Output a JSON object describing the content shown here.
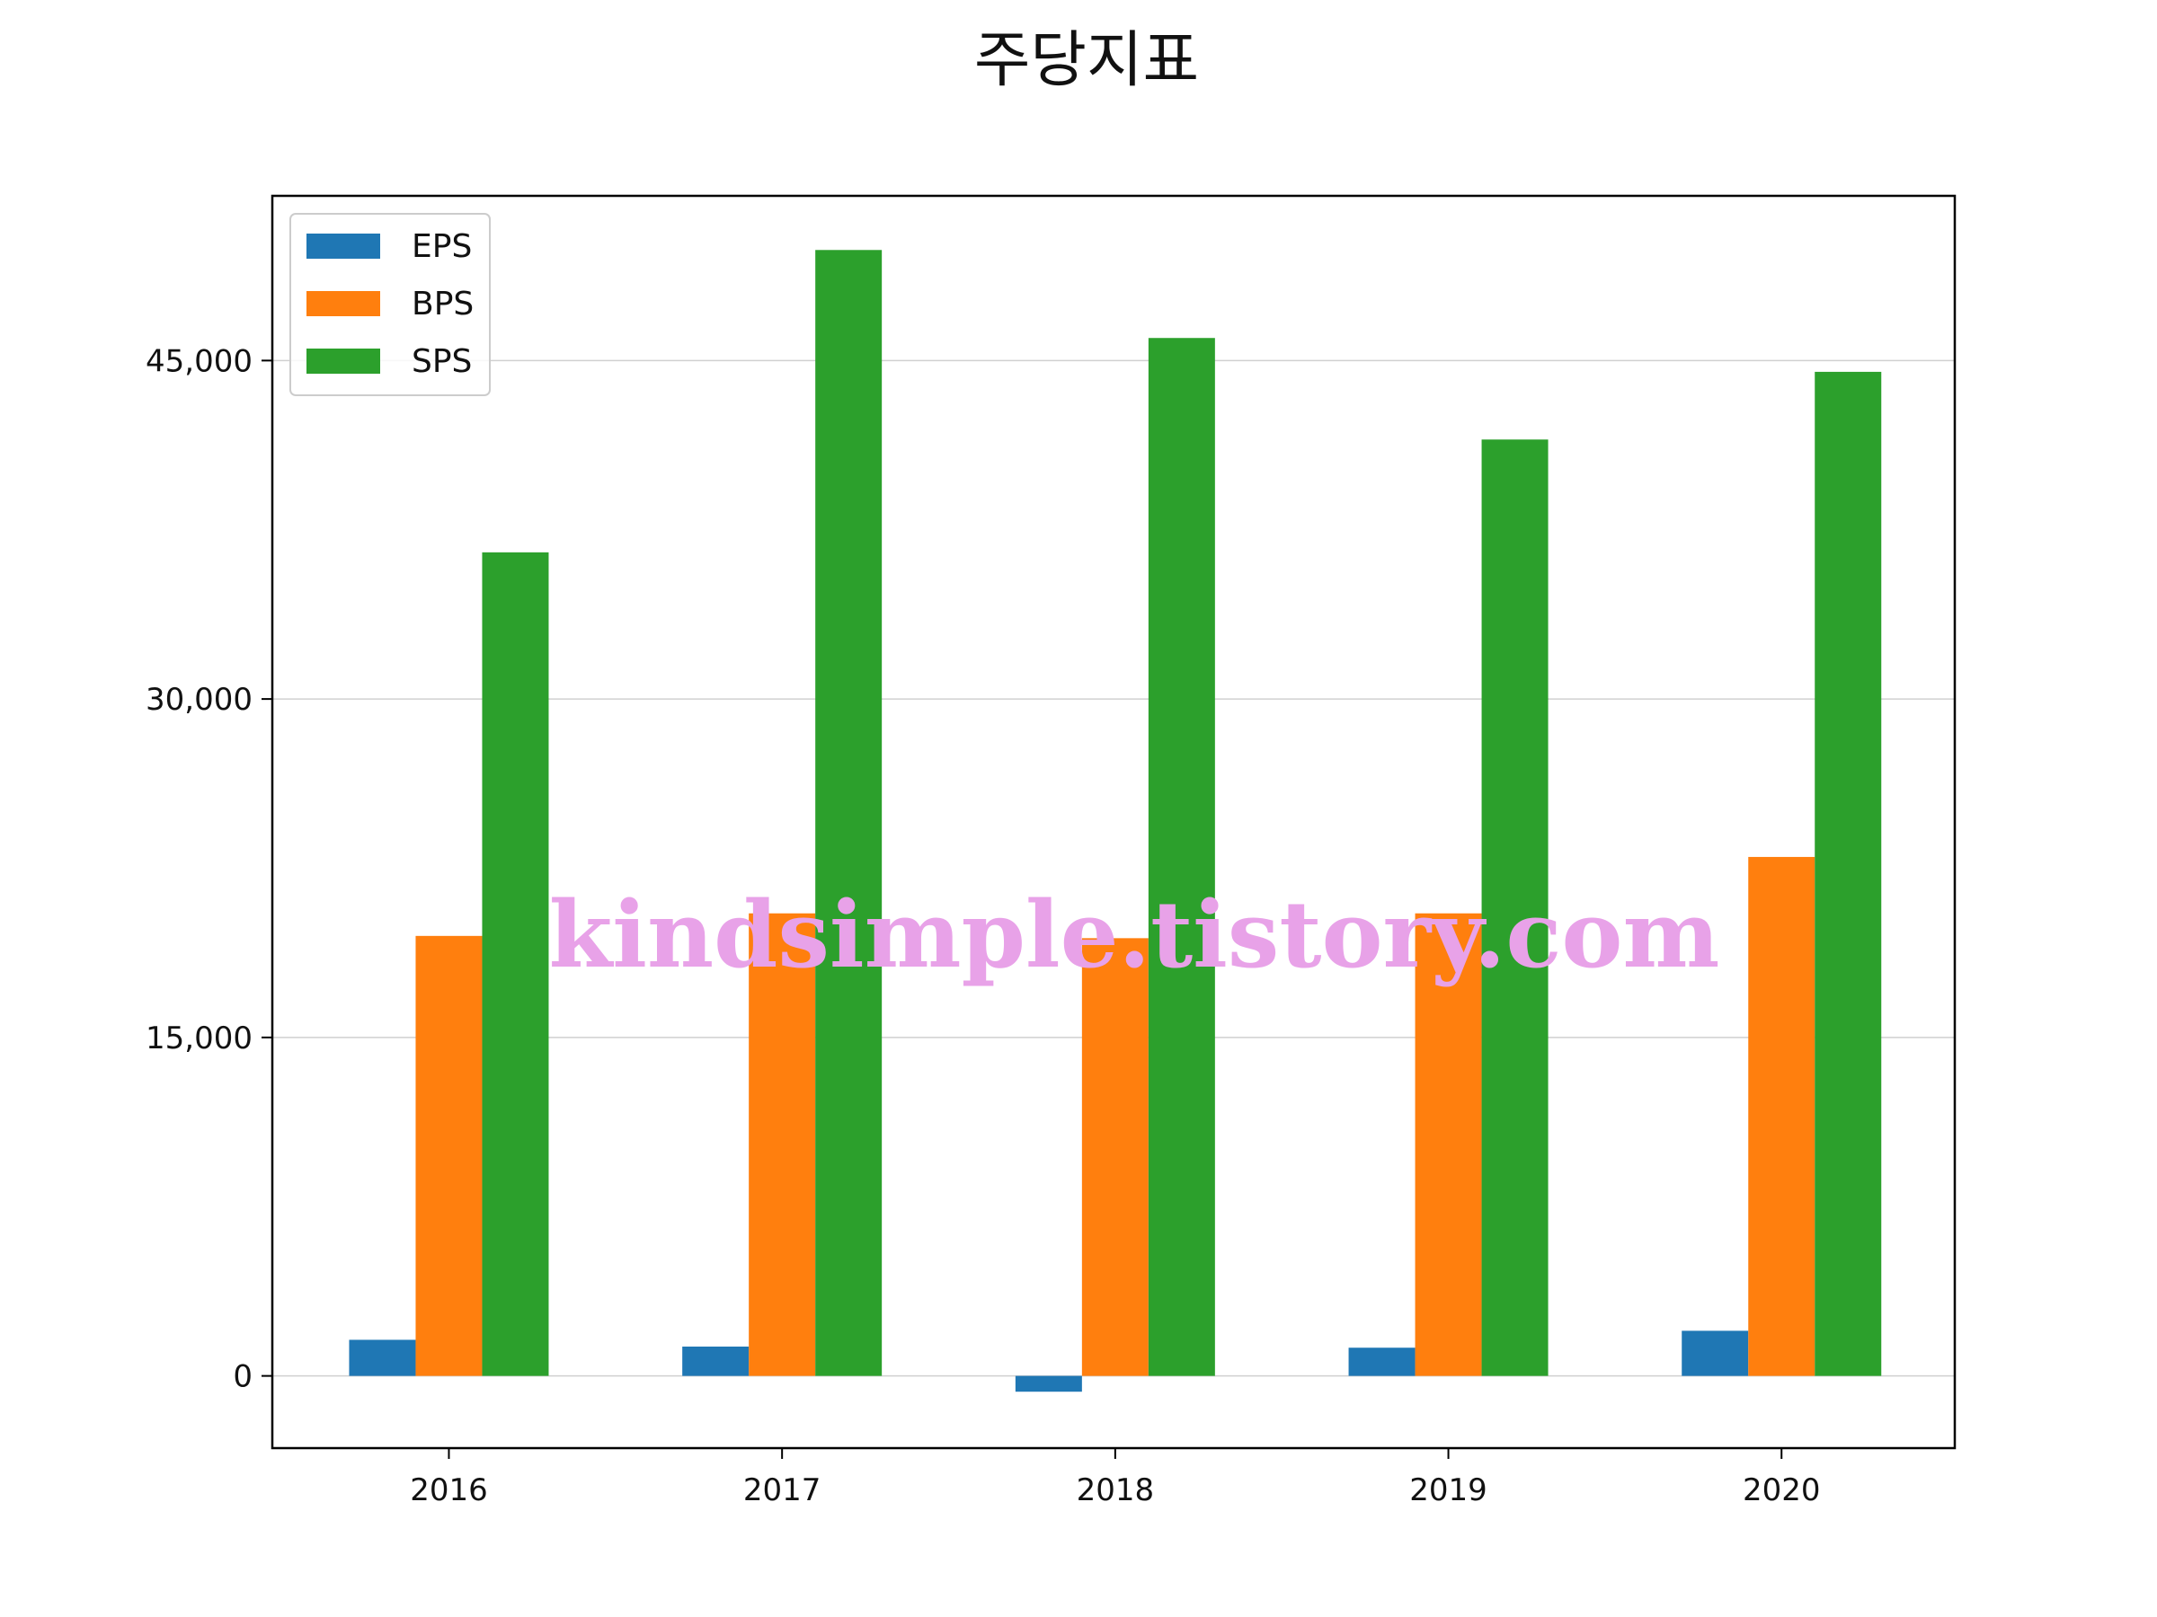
{
  "chart_data": {
    "type": "bar",
    "title": "주당지표",
    "xlabel": "",
    "ylabel": "",
    "categories": [
      "2016",
      "2017",
      "2018",
      "2019",
      "2020"
    ],
    "series": [
      {
        "name": "EPS",
        "color": "#1f77b4",
        "values": [
          1600,
          1300,
          -700,
          1250,
          2000
        ]
      },
      {
        "name": "BPS",
        "color": "#ff7f0e",
        "values": [
          19500,
          20500,
          19400,
          20500,
          23000
        ]
      },
      {
        "name": "SPS",
        "color": "#2ca02c",
        "values": [
          36500,
          49900,
          46000,
          41500,
          44500
        ]
      }
    ],
    "ylim": [
      -3200,
      52300
    ],
    "yticks": [
      0,
      15000,
      30000,
      45000
    ],
    "ytick_labels": [
      "0",
      "15,000",
      "30,000",
      "45,000"
    ],
    "grid": "horizontal",
    "legend_position": "top-left"
  },
  "watermark": "kindsimple.tistory.com"
}
